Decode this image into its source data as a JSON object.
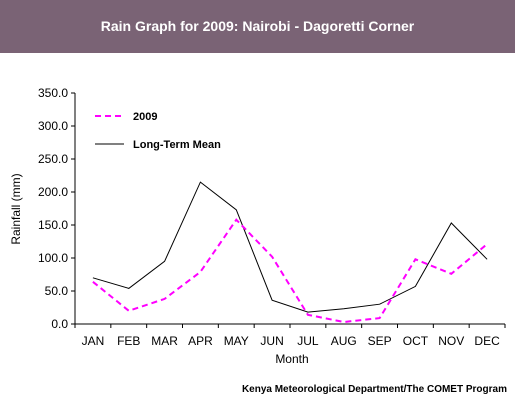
{
  "header": {
    "title": "Rain Graph for 2009: Nairobi - Dagoretti Corner"
  },
  "footer": {
    "credit": "Kenya Meteorological Department/The COMET Program"
  },
  "colors": {
    "header_bg": "#7a6375",
    "series_2009": "#ff00ff",
    "series_mean": "#000000"
  },
  "chart_data": {
    "type": "line",
    "categories": [
      "JAN",
      "FEB",
      "MAR",
      "APR",
      "MAY",
      "JUN",
      "JUL",
      "AUG",
      "SEP",
      "OCT",
      "NOV",
      "DEC"
    ],
    "series": [
      {
        "name": "2009",
        "style": "dashed",
        "color": "#ff00ff",
        "values": [
          64,
          20,
          38,
          79,
          158,
          102,
          14,
          3,
          9,
          98,
          76,
          121
        ]
      },
      {
        "name": "Long-Term Mean",
        "style": "solid",
        "color": "#000000",
        "values": [
          70,
          54,
          95,
          215,
          173,
          36,
          18,
          23,
          30,
          57,
          153,
          98
        ]
      }
    ],
    "xlabel": "Month",
    "ylabel": "Rainfall (mm)",
    "ylim": [
      0,
      350
    ],
    "yticks": [
      "0.0",
      "50.0",
      "100.0",
      "150.0",
      "200.0",
      "250.0",
      "300.0",
      "350.0"
    ],
    "legend_position": "top-left",
    "grid": false
  }
}
